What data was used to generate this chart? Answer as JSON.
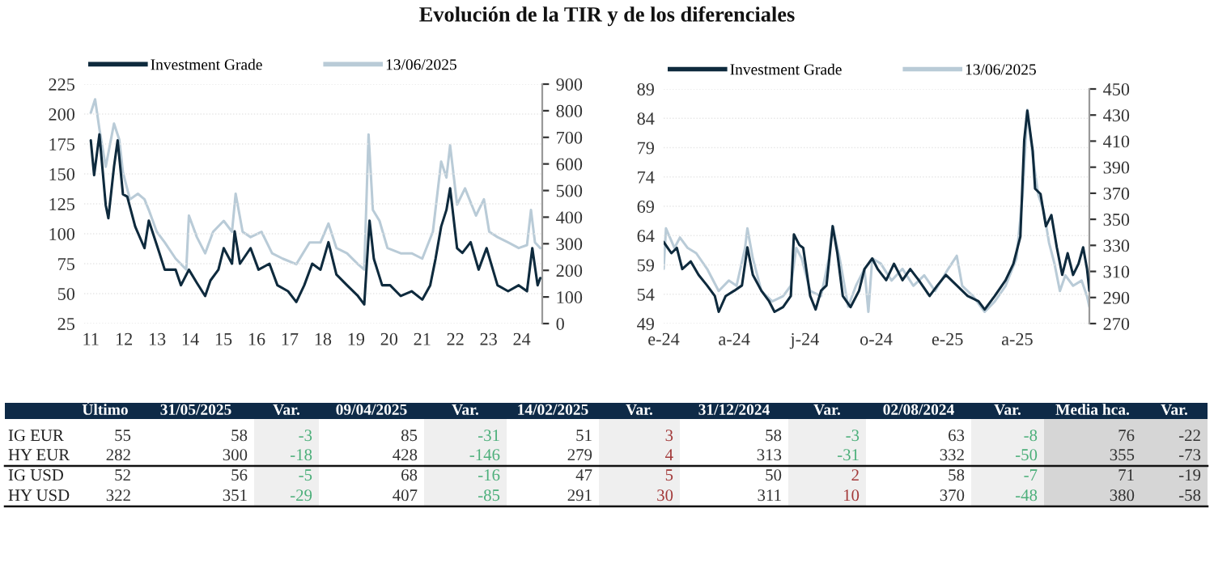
{
  "chart_data": [
    {
      "type": "line",
      "title": "Evolución de la TIR y de los diferenciales",
      "legend": "top",
      "grid": "y",
      "xlim": [
        2010.8,
        2024.62
      ],
      "xticks": [
        {
          "value": 2011,
          "label": "11"
        },
        {
          "value": 2012,
          "label": "12"
        },
        {
          "value": 2013,
          "label": "13"
        },
        {
          "value": 2014,
          "label": "14"
        },
        {
          "value": 2015,
          "label": "15"
        },
        {
          "value": 2016,
          "label": "16"
        },
        {
          "value": 2017,
          "label": "17"
        },
        {
          "value": 2018,
          "label": "18"
        },
        {
          "value": 2019,
          "label": "19"
        },
        {
          "value": 2020,
          "label": "20"
        },
        {
          "value": 2021,
          "label": "21"
        },
        {
          "value": 2022,
          "label": "22"
        },
        {
          "value": 2023,
          "label": "23"
        },
        {
          "value": 2024,
          "label": "24"
        }
      ],
      "ylim": [
        25,
        225
      ],
      "yticks": [
        25,
        50,
        75,
        100,
        125,
        150,
        175,
        200,
        225
      ],
      "y2lim": [
        0,
        900
      ],
      "y2ticks": [
        0,
        100,
        200,
        300,
        400,
        500,
        600,
        700,
        800,
        900
      ],
      "series": [
        {
          "name": "13/06/2025",
          "color": "#b9cbd7",
          "axis": "y2",
          "x": [
            2011.0,
            2011.13,
            2011.26,
            2011.45,
            2011.7,
            2011.86,
            2011.97,
            2012.18,
            2012.42,
            2012.62,
            2012.75,
            2012.99,
            2013.23,
            2013.56,
            2013.88,
            2013.96,
            2014.2,
            2014.45,
            2014.69,
            2015.01,
            2015.26,
            2015.37,
            2015.58,
            2015.82,
            2016.15,
            2016.47,
            2016.79,
            2017.2,
            2017.6,
            2017.93,
            2018.17,
            2018.41,
            2018.73,
            2019.06,
            2019.25,
            2019.38,
            2019.51,
            2019.71,
            2019.95,
            2020.35,
            2020.68,
            2021.0,
            2021.32,
            2021.57,
            2021.73,
            2021.84,
            2022.05,
            2022.29,
            2022.62,
            2022.86,
            2023.02,
            2023.27,
            2023.59,
            2023.91,
            2024.16,
            2024.28,
            2024.4,
            2024.56
          ],
          "values": [
            792,
            843,
            731,
            589,
            752,
            691,
            569,
            467,
            488,
            467,
            427,
            345,
            305,
            244,
            203,
            406,
            325,
            264,
            345,
            386,
            345,
            488,
            345,
            325,
            345,
            264,
            244,
            223,
            305,
            305,
            376,
            284,
            264,
            223,
            203,
            711,
            427,
            386,
            284,
            264,
            264,
            244,
            345,
            609,
            549,
            670,
            447,
            508,
            406,
            467,
            345,
            325,
            305,
            284,
            295,
            427,
            305,
            284
          ]
        },
        {
          "name": "Investment Grade",
          "color": "#0e2a3d",
          "axis": "y",
          "x": [
            2011.0,
            2011.1,
            2011.26,
            2011.45,
            2011.53,
            2011.7,
            2011.81,
            2011.97,
            2012.1,
            2012.34,
            2012.62,
            2012.75,
            2013.07,
            2013.23,
            2013.56,
            2013.72,
            2013.96,
            2014.2,
            2014.45,
            2014.61,
            2014.85,
            2015.01,
            2015.26,
            2015.34,
            2015.5,
            2015.82,
            2016.06,
            2016.39,
            2016.63,
            2016.95,
            2017.2,
            2017.44,
            2017.68,
            2017.93,
            2018.17,
            2018.41,
            2018.73,
            2019.06,
            2019.25,
            2019.41,
            2019.54,
            2019.79,
            2020.03,
            2020.35,
            2020.68,
            2021.0,
            2021.24,
            2021.4,
            2021.57,
            2021.73,
            2021.84,
            2022.05,
            2022.21,
            2022.46,
            2022.7,
            2022.94,
            2023.27,
            2023.59,
            2023.91,
            2024.16,
            2024.32,
            2024.48,
            2024.56
          ],
          "values": [
            178,
            149,
            183,
            124,
            113,
            156,
            178,
            133,
            131,
            106,
            88,
            111,
            84,
            70,
            70,
            57,
            70,
            59,
            48,
            61,
            70,
            88,
            75,
            102,
            75,
            88,
            70,
            75,
            57,
            52,
            43,
            57,
            75,
            70,
            93,
            66,
            57,
            48,
            41,
            111,
            79,
            57,
            57,
            48,
            52,
            45,
            57,
            79,
            106,
            120,
            138,
            88,
            84,
            93,
            70,
            88,
            57,
            52,
            57,
            52,
            88,
            57,
            63
          ]
        }
      ]
    },
    {
      "type": "line",
      "legend": "top",
      "grid": "y",
      "xlim": [
        "2024-01-01",
        "2025-07-03"
      ],
      "xticks": [
        {
          "value": "2024-01-01",
          "label": "e-24"
        },
        {
          "value": "2024-04-01",
          "label": "a-24"
        },
        {
          "value": "2024-07-01",
          "label": "j-24"
        },
        {
          "value": "2024-10-01",
          "label": "o-24"
        },
        {
          "value": "2025-01-01",
          "label": "e-25"
        },
        {
          "value": "2025-04-01",
          "label": "a-25"
        }
      ],
      "ylim": [
        49,
        89
      ],
      "yticks": [
        49,
        54,
        59,
        64,
        69,
        74,
        79,
        84,
        89
      ],
      "y2lim": [
        270,
        450
      ],
      "y2ticks": [
        270,
        290,
        310,
        330,
        350,
        370,
        390,
        410,
        430,
        450
      ],
      "series": [
        {
          "name": "13/06/2025",
          "color": "#b9cbd7",
          "axis": "y2",
          "x": [
            "2024-01-01",
            "2024-01-04",
            "2024-01-15",
            "2024-01-22",
            "2024-02-01",
            "2024-02-12",
            "2024-02-26",
            "2024-03-12",
            "2024-03-25",
            "2024-04-04",
            "2024-04-15",
            "2024-04-18",
            "2024-04-25",
            "2024-05-06",
            "2024-05-20",
            "2024-06-03",
            "2024-06-13",
            "2024-06-20",
            "2024-06-27",
            "2024-07-08",
            "2024-07-22",
            "2024-08-01",
            "2024-08-06",
            "2024-08-15",
            "2024-08-26",
            "2024-09-05",
            "2024-09-16",
            "2024-09-21",
            "2024-09-26",
            "2024-10-07",
            "2024-10-21",
            "2024-11-04",
            "2024-11-18",
            "2024-12-02",
            "2024-12-16",
            "2025-01-02",
            "2025-01-13",
            "2025-01-20",
            "2025-02-03",
            "2025-02-18",
            "2025-03-03",
            "2025-03-17",
            "2025-03-31",
            "2025-04-08",
            "2025-04-14",
            "2025-04-21",
            "2025-04-28",
            "2025-05-05",
            "2025-05-12",
            "2025-05-19",
            "2025-05-26",
            "2025-06-02",
            "2025-06-12",
            "2025-06-23",
            "2025-06-30",
            "2025-07-03"
          ],
          "values": [
            312,
            343,
            328,
            336,
            328,
            324,
            312,
            295,
            303,
            299,
            328,
            343,
            320,
            295,
            287,
            291,
            299,
            328,
            320,
            295,
            291,
            320,
            345,
            320,
            283,
            299,
            312,
            279,
            320,
            316,
            303,
            312,
            299,
            307,
            295,
            312,
            322,
            299,
            291,
            279,
            287,
            299,
            320,
            369,
            434,
            398,
            369,
            357,
            332,
            316,
            295,
            307,
            299,
            303,
            291,
            283
          ]
        },
        {
          "name": "Investment Grade",
          "color": "#0e2a3d",
          "axis": "y",
          "x": [
            "2024-01-01",
            "2024-01-11",
            "2024-01-18",
            "2024-01-25",
            "2024-02-05",
            "2024-02-15",
            "2024-02-26",
            "2024-03-07",
            "2024-03-12",
            "2024-03-21",
            "2024-04-01",
            "2024-04-11",
            "2024-04-18",
            "2024-04-25",
            "2024-05-06",
            "2024-05-16",
            "2024-05-23",
            "2024-06-03",
            "2024-06-13",
            "2024-06-17",
            "2024-06-24",
            "2024-06-29",
            "2024-07-08",
            "2024-07-15",
            "2024-07-22",
            "2024-07-29",
            "2024-08-06",
            "2024-08-12",
            "2024-08-19",
            "2024-08-29",
            "2024-09-09",
            "2024-09-16",
            "2024-09-26",
            "2024-10-03",
            "2024-10-14",
            "2024-10-24",
            "2024-11-04",
            "2024-11-14",
            "2024-11-25",
            "2024-12-09",
            "2024-12-19",
            "2024-12-30",
            "2025-01-13",
            "2025-01-27",
            "2025-02-10",
            "2025-02-18",
            "2025-03-03",
            "2025-03-17",
            "2025-03-27",
            "2025-04-05",
            "2025-04-10",
            "2025-04-14",
            "2025-04-21",
            "2025-04-24",
            "2025-05-01",
            "2025-05-08",
            "2025-05-15",
            "2025-05-22",
            "2025-05-29",
            "2025-06-05",
            "2025-06-12",
            "2025-06-19",
            "2025-06-25",
            "2025-06-30",
            "2025-07-03"
          ],
          "values": [
            62.9,
            61,
            61.9,
            58.3,
            59.6,
            57.3,
            55.5,
            53.7,
            51,
            53.7,
            54.6,
            55.5,
            62,
            57.3,
            54.6,
            52.8,
            51,
            51.8,
            53.7,
            64.2,
            62.4,
            61.9,
            53.7,
            51.4,
            54.6,
            55.5,
            65.6,
            61,
            53.7,
            51.8,
            54.6,
            58.3,
            60.1,
            58.3,
            56.4,
            59.2,
            56.4,
            58.3,
            56.4,
            53.7,
            55.5,
            57.3,
            55.5,
            53.7,
            52.8,
            51.4,
            53.7,
            56.4,
            59.2,
            63.8,
            80.3,
            85.3,
            78.4,
            72,
            71.1,
            65.6,
            67.5,
            62,
            57.3,
            61,
            57.3,
            59.2,
            62,
            58.3,
            54.6
          ]
        }
      ]
    },
    {
      "type": "other",
      "categories": [
        null,
        "Último",
        "31/05/2025",
        "Var.",
        "09/04/2025",
        "Var.",
        "14/02/2025",
        "Var.",
        "31/12/2024",
        "Var.",
        "02/08/2024",
        "Var.",
        "Media hca.",
        "Var."
      ],
      "y_categories": [
        "IG EUR",
        "HY EUR",
        "IG USD",
        "HY USD"
      ],
      "cell_labels": [
        [
          "55",
          "58",
          "-3",
          "85",
          "-31",
          "51",
          "3",
          "58",
          "-3",
          "63",
          "-8",
          "76",
          "-22"
        ],
        [
          "282",
          "300",
          "-18",
          "428",
          "-146",
          "279",
          "4",
          "313",
          "-31",
          "332",
          "-50",
          "355",
          "-73"
        ],
        [
          "52",
          "56",
          "-5",
          "68",
          "-16",
          "47",
          "5",
          "50",
          "2",
          "58",
          "-7",
          "71",
          "-19"
        ],
        [
          "322",
          "351",
          "-29",
          "407",
          "-85",
          "291",
          "30",
          "311",
          "10",
          "370",
          "-48",
          "380",
          "-58"
        ]
      ],
      "colors": [
        [
          "#333333",
          "#333333",
          "#4caf7a",
          "#333333",
          "#4caf7a",
          "#333333",
          "#a33a3a",
          "#333333",
          "#4caf7a",
          "#333333",
          "#4caf7a",
          "#333333",
          "#333333"
        ],
        [
          "#333333",
          "#333333",
          "#4caf7a",
          "#333333",
          "#4caf7a",
          "#333333",
          "#a33a3a",
          "#333333",
          "#4caf7a",
          "#333333",
          "#4caf7a",
          "#333333",
          "#333333"
        ],
        [
          "#333333",
          "#333333",
          "#4caf7a",
          "#333333",
          "#4caf7a",
          "#333333",
          "#a33a3a",
          "#333333",
          "#a33a3a",
          "#333333",
          "#4caf7a",
          "#333333",
          "#333333"
        ],
        [
          "#333333",
          "#333333",
          "#4caf7a",
          "#333333",
          "#4caf7a",
          "#333333",
          "#a33a3a",
          "#333333",
          "#a33a3a",
          "#333333",
          "#4caf7a",
          "#333333",
          "#333333"
        ]
      ]
    }
  ]
}
